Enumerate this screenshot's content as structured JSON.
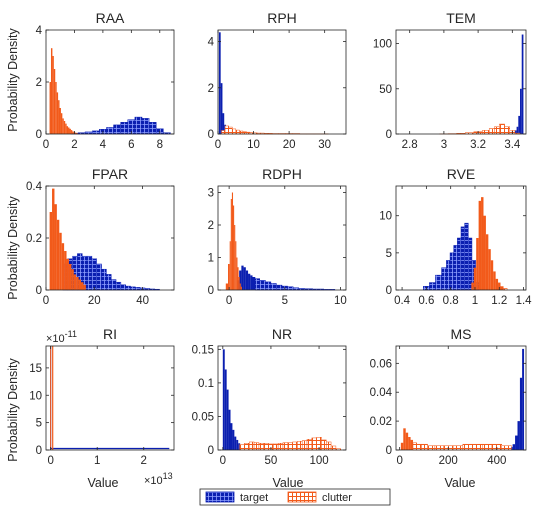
{
  "figure": {
    "ylabel": "Probability Density",
    "xlabel": "Value",
    "legend": {
      "placement": "bottom-center",
      "entries": [
        "target",
        "clutter"
      ]
    },
    "colors": {
      "target": "#0b1fb0",
      "clutter": "#f25a1a",
      "axis": "#262626",
      "background": "#ffffff"
    }
  },
  "chart_data": [
    {
      "type": "bar",
      "title": "RAA",
      "xlim": [
        0,
        9
      ],
      "ylim": [
        0,
        4
      ],
      "xticks": [
        0,
        2,
        4,
        6,
        8
      ],
      "yticks": [
        0,
        2,
        4
      ],
      "xtick_labels": [
        "0",
        "2",
        "4",
        "6",
        "8"
      ],
      "ytick_labels": [
        "0",
        "2",
        "4"
      ],
      "series": [
        {
          "name": "target",
          "x": [
            2.0,
            2.5,
            3.0,
            3.5,
            4.0,
            4.5,
            5.0,
            5.5,
            6.0,
            6.5,
            7.0,
            7.5,
            8.0,
            8.5
          ],
          "values": [
            0.03,
            0.05,
            0.08,
            0.12,
            0.18,
            0.25,
            0.35,
            0.45,
            0.55,
            0.65,
            0.6,
            0.45,
            0.2,
            0.05
          ]
        },
        {
          "name": "clutter",
          "x": [
            0.3,
            0.4,
            0.5,
            0.6,
            0.7,
            0.8,
            0.9,
            1.0,
            1.1,
            1.2,
            1.3,
            1.4,
            1.5,
            1.6,
            1.7,
            1.8,
            1.9,
            2.0,
            2.1,
            2.2
          ],
          "values": [
            2.0,
            3.3,
            3.0,
            2.5,
            2.0,
            1.6,
            1.3,
            1.0,
            0.8,
            0.6,
            0.5,
            0.4,
            0.3,
            0.25,
            0.2,
            0.15,
            0.1,
            0.08,
            0.05,
            0.03
          ]
        }
      ]
    },
    {
      "type": "bar",
      "title": "RPH",
      "xlim": [
        0,
        36
      ],
      "ylim": [
        0,
        4.5
      ],
      "xticks": [
        0,
        10,
        20,
        30
      ],
      "yticks": [
        0,
        2,
        4
      ],
      "xtick_labels": [
        "0",
        "10",
        "20",
        "30"
      ],
      "ytick_labels": [
        "0",
        "2",
        "4"
      ],
      "series": [
        {
          "name": "target",
          "x": [
            0.5,
            1.0,
            1.5,
            2.0,
            2.5,
            3.0
          ],
          "values": [
            4.4,
            2.2,
            0.9,
            0.4,
            0.15,
            0.05
          ]
        },
        {
          "name": "clutter",
          "x": [
            1.5,
            2.5,
            3.5,
            4.5,
            5.5,
            6.5,
            7.5,
            8.5,
            9.5,
            10.5,
            11.5,
            12.5,
            13.5,
            14.5,
            16.0,
            18.0,
            20.0,
            22.0,
            24.0,
            26.0,
            28.0,
            30.0
          ],
          "values": [
            0.15,
            0.35,
            0.3,
            0.22,
            0.17,
            0.13,
            0.1,
            0.08,
            0.06,
            0.05,
            0.04,
            0.04,
            0.03,
            0.03,
            0.02,
            0.02,
            0.02,
            0.02,
            0.01,
            0.01,
            0.01,
            0.01
          ]
        }
      ]
    },
    {
      "type": "bar",
      "title": "TEM",
      "xlim": [
        2.72,
        3.48
      ],
      "ylim": [
        0,
        115
      ],
      "xticks": [
        2.8,
        3.0,
        3.2,
        3.4
      ],
      "yticks": [
        0,
        50,
        100
      ],
      "xtick_labels": [
        "2.8",
        "3",
        "3.2",
        "3.4"
      ],
      "ytick_labels": [
        "0",
        "50",
        "100"
      ],
      "series": [
        {
          "name": "target",
          "x": [
            3.4,
            3.41,
            3.42,
            3.43,
            3.44,
            3.45,
            3.46
          ],
          "values": [
            1,
            2,
            4,
            8,
            20,
            50,
            110
          ]
        },
        {
          "name": "clutter",
          "x": [
            3.0,
            3.05,
            3.1,
            3.15,
            3.2,
            3.25,
            3.28,
            3.31,
            3.34,
            3.37,
            3.4,
            3.43
          ],
          "values": [
            0.2,
            0.4,
            0.8,
            1.5,
            2.5,
            4,
            6,
            8,
            11,
            8,
            4,
            1
          ]
        }
      ]
    },
    {
      "type": "bar",
      "title": "FPAR",
      "xlim": [
        0,
        53
      ],
      "ylim": [
        0,
        0.4
      ],
      "xticks": [
        0,
        20,
        40
      ],
      "yticks": [
        0,
        0.2,
        0.4
      ],
      "xtick_labels": [
        "0",
        "20",
        "40"
      ],
      "ytick_labels": [
        "0",
        "0.2",
        "0.4"
      ],
      "series": [
        {
          "name": "target",
          "x": [
            8,
            10,
            12,
            14,
            16,
            18,
            20,
            22,
            24,
            26,
            28,
            30,
            32,
            34,
            36,
            38,
            40,
            42,
            44,
            46
          ],
          "values": [
            0.1,
            0.12,
            0.13,
            0.14,
            0.13,
            0.13,
            0.12,
            0.1,
            0.08,
            0.06,
            0.04,
            0.03,
            0.02,
            0.015,
            0.012,
            0.01,
            0.008,
            0.006,
            0.004,
            0.003
          ]
        },
        {
          "name": "clutter",
          "x": [
            2,
            3,
            4,
            5,
            6,
            7,
            8,
            9,
            10,
            11,
            12,
            13,
            14,
            15,
            16
          ],
          "values": [
            0.3,
            0.39,
            0.33,
            0.27,
            0.22,
            0.18,
            0.15,
            0.12,
            0.1,
            0.08,
            0.06,
            0.05,
            0.04,
            0.03,
            0.02
          ]
        }
      ]
    },
    {
      "type": "bar",
      "title": "RDPH",
      "xlim": [
        -1,
        10.5
      ],
      "ylim": [
        0,
        3.2
      ],
      "xticks": [
        0,
        5,
        10
      ],
      "yticks": [
        0,
        1,
        2,
        3
      ],
      "xtick_labels": [
        "0",
        "5",
        "10"
      ],
      "ytick_labels": [
        "0",
        "1",
        "2",
        "3"
      ],
      "series": [
        {
          "name": "target",
          "x": [
            0.8,
            1.0,
            1.2,
            1.4,
            1.6,
            1.8,
            2.0,
            2.2,
            2.5,
            3.0,
            3.5,
            4.0,
            4.5,
            5.0,
            5.5,
            6.0,
            6.5,
            7.0,
            8.0,
            9.0
          ],
          "values": [
            0.3,
            0.6,
            0.75,
            0.7,
            0.6,
            0.5,
            0.45,
            0.4,
            0.35,
            0.3,
            0.25,
            0.2,
            0.15,
            0.12,
            0.1,
            0.07,
            0.05,
            0.04,
            0.03,
            0.02
          ]
        },
        {
          "name": "clutter",
          "x": [
            -0.2,
            0.0,
            0.1,
            0.2,
            0.3,
            0.4,
            0.5,
            0.6,
            0.7,
            0.8,
            0.9,
            1.0,
            1.1
          ],
          "values": [
            0.2,
            0.8,
            1.5,
            2.8,
            3.0,
            2.6,
            2.0,
            1.5,
            1.0,
            0.7,
            0.4,
            0.2,
            0.1
          ]
        }
      ]
    },
    {
      "type": "bar",
      "title": "RVE",
      "xlim": [
        0.35,
        1.42
      ],
      "ylim": [
        0,
        14
      ],
      "xticks": [
        0.4,
        0.6,
        0.8,
        1.0,
        1.2,
        1.4
      ],
      "yticks": [
        0,
        5,
        10
      ],
      "xtick_labels": [
        "0.4",
        "0.6",
        "0.8",
        "1",
        "1.2",
        "1.4"
      ],
      "ytick_labels": [
        "0",
        "5",
        "10"
      ],
      "series": [
        {
          "name": "target",
          "x": [
            0.6,
            0.65,
            0.7,
            0.75,
            0.78,
            0.81,
            0.84,
            0.87,
            0.9,
            0.93,
            0.96,
            0.99,
            1.02
          ],
          "values": [
            0.5,
            1.0,
            2.0,
            3.0,
            4.0,
            5.0,
            6.0,
            7.0,
            8.5,
            9.0,
            7.0,
            4.0,
            1.0
          ]
        },
        {
          "name": "clutter",
          "x": [
            0.98,
            1.0,
            1.02,
            1.04,
            1.06,
            1.08,
            1.1,
            1.12,
            1.14,
            1.16,
            1.18,
            1.2,
            1.22,
            1.25
          ],
          "values": [
            1.0,
            3.0,
            7.0,
            12.0,
            12.5,
            10.0,
            7.5,
            5.5,
            4.0,
            2.5,
            1.5,
            1.0,
            0.5,
            0.2
          ]
        }
      ]
    },
    {
      "type": "bar",
      "title": "RI",
      "xlim": [
        -0.1,
        2.65
      ],
      "ylim": [
        0,
        19
      ],
      "x_exponent": "×10",
      "x_exponent_power": "13",
      "y_exponent": "×10",
      "y_exponent_power": "-11",
      "xticks": [
        0,
        1,
        2
      ],
      "yticks": [
        0,
        5,
        10,
        15
      ],
      "xtick_labels": [
        "0",
        "1",
        "2"
      ],
      "ytick_labels": [
        "0",
        "5",
        "10",
        "15"
      ],
      "series": [
        {
          "name": "target",
          "x": [
            0.0
          ],
          "values": [
            19.0
          ]
        },
        {
          "name": "clutter",
          "x": [
            0.0
          ],
          "values": [
            19.0
          ]
        }
      ]
    },
    {
      "type": "bar",
      "title": "NR",
      "xlim": [
        -5,
        128
      ],
      "ylim": [
        0,
        0.155
      ],
      "xticks": [
        0,
        50,
        100
      ],
      "yticks": [
        0,
        0.05,
        0.1,
        0.15
      ],
      "xtick_labels": [
        "0",
        "50",
        "100"
      ],
      "ytick_labels": [
        "0",
        "0.05",
        "0.1",
        "0.15"
      ],
      "series": [
        {
          "name": "target",
          "x": [
            1,
            3,
            5,
            7,
            9,
            11,
            13,
            15,
            17,
            19,
            21,
            23
          ],
          "values": [
            0.15,
            0.12,
            0.09,
            0.06,
            0.04,
            0.03,
            0.02,
            0.015,
            0.01,
            0.007,
            0.005,
            0.003
          ]
        },
        {
          "name": "clutter",
          "x": [
            20,
            25,
            30,
            35,
            40,
            45,
            50,
            55,
            60,
            65,
            70,
            75,
            80,
            85,
            90,
            95,
            100,
            105,
            110,
            115,
            120
          ],
          "values": [
            0.008,
            0.01,
            0.012,
            0.011,
            0.01,
            0.01,
            0.009,
            0.009,
            0.01,
            0.011,
            0.011,
            0.012,
            0.013,
            0.014,
            0.016,
            0.018,
            0.019,
            0.015,
            0.012,
            0.006,
            0.002
          ]
        }
      ]
    },
    {
      "type": "bar",
      "title": "MS",
      "xlim": [
        -15,
        520
      ],
      "ylim": [
        0,
        0.072
      ],
      "xticks": [
        0,
        200,
        400
      ],
      "yticks": [
        0,
        0.02,
        0.04,
        0.06
      ],
      "xtick_labels": [
        "0",
        "200",
        "400"
      ],
      "ytick_labels": [
        "0",
        "0.02",
        "0.04",
        "0.06"
      ],
      "series": [
        {
          "name": "target",
          "x": [
            460,
            470,
            480,
            490,
            500,
            508
          ],
          "values": [
            0.002,
            0.004,
            0.01,
            0.02,
            0.05,
            0.07
          ]
        },
        {
          "name": "clutter",
          "x": [
            10,
            20,
            30,
            40,
            50,
            60,
            80,
            100,
            130,
            160,
            200,
            240,
            280,
            320,
            360,
            400,
            440
          ],
          "values": [
            0.005,
            0.015,
            0.012,
            0.009,
            0.007,
            0.005,
            0.004,
            0.004,
            0.003,
            0.003,
            0.003,
            0.003,
            0.004,
            0.004,
            0.004,
            0.004,
            0.003
          ]
        }
      ]
    }
  ]
}
